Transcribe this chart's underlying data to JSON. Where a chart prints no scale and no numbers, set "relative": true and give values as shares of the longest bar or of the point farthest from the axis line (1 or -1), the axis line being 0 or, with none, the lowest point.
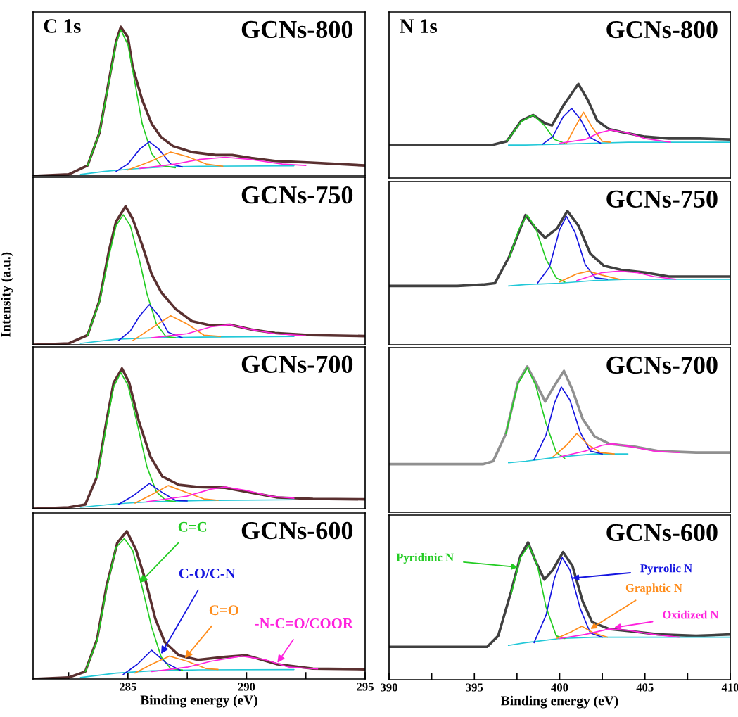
{
  "chart_data": [
    {
      "type": "line",
      "title": "GCNs-800",
      "relative": true,
      "xlim": [
        281,
        295
      ],
      "tick_labels": false,
      "annotations": [
        "C 1s"
      ],
      "series": [
        {
          "color": "#5a3030",
          "x": [
            281,
            282.5,
            283.3,
            283.8,
            284.2,
            284.5,
            284.7,
            285.0,
            285.2,
            285.6,
            286.0,
            286.4,
            286.9,
            287.7,
            288.7,
            289.4,
            290.2,
            291.2,
            292.7,
            295
          ],
          "values": [
            0,
            0.01,
            0.07,
            0.29,
            0.64,
            0.9,
            1.0,
            0.93,
            0.73,
            0.51,
            0.35,
            0.26,
            0.2,
            0.16,
            0.14,
            0.14,
            0.12,
            0.1,
            0.09,
            0.07
          ]
        },
        {
          "color": "#22c8d8",
          "x": [
            283,
            284,
            285,
            286.5,
            288,
            292
          ],
          "values": [
            0.01,
            0.03,
            0.045,
            0.06,
            0.065,
            0.068
          ]
        },
        {
          "color": "#22cc22",
          "x": [
            283.3,
            283.8,
            284.2,
            284.5,
            284.7,
            285.0,
            285.3,
            285.6,
            286.0,
            286.4,
            287
          ],
          "values": [
            0.07,
            0.29,
            0.63,
            0.89,
            0.98,
            0.88,
            0.62,
            0.35,
            0.15,
            0.07,
            0.055
          ]
        },
        {
          "color": "#1515e0",
          "x": [
            284.5,
            285.0,
            285.5,
            285.9,
            286.3,
            286.8,
            287.3
          ],
          "values": [
            0.03,
            0.08,
            0.18,
            0.23,
            0.18,
            0.08,
            0.06
          ]
        },
        {
          "color": "#ff8c1a",
          "x": [
            285.0,
            286.0,
            286.8,
            287.5,
            288.3,
            289
          ],
          "values": [
            0.04,
            0.1,
            0.16,
            0.13,
            0.08,
            0.065
          ]
        },
        {
          "color": "#ff22dd",
          "x": [
            285.5,
            287,
            288,
            289.1,
            290.2,
            291.5,
            292.5
          ],
          "values": [
            0.05,
            0.08,
            0.11,
            0.125,
            0.11,
            0.08,
            0.07
          ]
        }
      ]
    },
    {
      "type": "line",
      "title": "GCNs-800",
      "relative": true,
      "xlim": [
        390,
        410
      ],
      "tick_labels": false,
      "annotations": [
        "N 1s"
      ],
      "series": [
        {
          "color": "#404040",
          "x": [
            390,
            392,
            394,
            396,
            396.9,
            397.75,
            398.45,
            399.15,
            399.55,
            400.25,
            401.1,
            401.65,
            402.2,
            402.9,
            403.6,
            405,
            406.4,
            408.2,
            410
          ],
          "values": [
            0.35,
            0.35,
            0.35,
            0.35,
            0.39,
            0.61,
            0.67,
            0.58,
            0.56,
            0.78,
            1.0,
            0.83,
            0.61,
            0.52,
            0.49,
            0.44,
            0.42,
            0.42,
            0.41
          ]
        },
        {
          "color": "#22c8d8",
          "x": [
            397,
            398,
            400,
            402,
            404,
            410
          ],
          "values": [
            0.35,
            0.35,
            0.36,
            0.37,
            0.38,
            0.38
          ]
        },
        {
          "color": "#22cc22",
          "x": [
            396.9,
            397.75,
            398.45,
            399.1,
            399.7,
            400.3
          ],
          "values": [
            0.39,
            0.6,
            0.67,
            0.56,
            0.41,
            0.37
          ]
        },
        {
          "color": "#1515e0",
          "x": [
            399,
            399.6,
            400.2,
            400.7,
            401.2,
            401.8,
            402.4
          ],
          "values": [
            0.36,
            0.44,
            0.65,
            0.74,
            0.63,
            0.43,
            0.37
          ]
        },
        {
          "color": "#ff8c1a",
          "x": [
            400.4,
            400.9,
            401.4,
            401.9,
            402.5,
            403
          ],
          "values": [
            0.37,
            0.54,
            0.7,
            0.54,
            0.39,
            0.38
          ]
        },
        {
          "color": "#ff22dd",
          "x": [
            400,
            401.5,
            402.3,
            403,
            404,
            405,
            406.5
          ],
          "values": [
            0.37,
            0.41,
            0.48,
            0.51,
            0.48,
            0.42,
            0.38
          ]
        }
      ]
    },
    {
      "type": "line",
      "title": "GCNs-750",
      "relative": true,
      "xlim": [
        281,
        295
      ],
      "tick_labels": false,
      "ylabel": "Intensity (a.u.)",
      "series": [
        {
          "color": "#5a3030",
          "x": [
            281,
            282.5,
            283.3,
            283.8,
            284.2,
            284.5,
            284.9,
            285.2,
            285.6,
            286.0,
            286.4,
            287.0,
            287.7,
            288.5,
            289.3,
            290.2,
            291.2,
            292.7,
            295
          ],
          "values": [
            0,
            0.01,
            0.07,
            0.32,
            0.68,
            0.89,
            1.0,
            0.91,
            0.72,
            0.51,
            0.38,
            0.26,
            0.17,
            0.14,
            0.145,
            0.11,
            0.085,
            0.07,
            0.063
          ]
        },
        {
          "color": "#22c8d8",
          "x": [
            283,
            284.5,
            286,
            288,
            292
          ],
          "values": [
            0.01,
            0.04,
            0.05,
            0.055,
            0.06
          ]
        },
        {
          "color": "#22cc22",
          "x": [
            283.3,
            283.8,
            284.2,
            284.5,
            284.8,
            285.1,
            285.5,
            285.8,
            286.2,
            286.6,
            287
          ],
          "values": [
            0.07,
            0.31,
            0.64,
            0.86,
            0.94,
            0.86,
            0.6,
            0.37,
            0.15,
            0.06,
            0.05
          ]
        },
        {
          "color": "#1515e0",
          "x": [
            284.6,
            285.1,
            285.5,
            285.9,
            286.3,
            286.7,
            287.3
          ],
          "values": [
            0.03,
            0.1,
            0.21,
            0.29,
            0.21,
            0.09,
            0.05
          ]
        },
        {
          "color": "#ff8c1a",
          "x": [
            285.2,
            286,
            286.8,
            287.5,
            288.2,
            288.9
          ],
          "values": [
            0.03,
            0.12,
            0.21,
            0.15,
            0.07,
            0.06
          ]
        },
        {
          "color": "#ff22dd",
          "x": [
            286,
            287.5,
            288.5,
            289.3,
            290.2,
            291.2,
            292.5
          ],
          "values": [
            0.05,
            0.08,
            0.13,
            0.145,
            0.11,
            0.08,
            0.065
          ]
        }
      ]
    },
    {
      "type": "line",
      "title": "GCNs-750",
      "relative": true,
      "xlim": [
        390,
        410
      ],
      "tick_labels": false,
      "series": [
        {
          "color": "#404040",
          "x": [
            390,
            392,
            394,
            395.5,
            396.2,
            397.05,
            398.0,
            398.6,
            399.15,
            399.85,
            400.45,
            401.1,
            401.8,
            402.6,
            403.6,
            405,
            406.4,
            408.2,
            410
          ],
          "values": [
            0.44,
            0.44,
            0.44,
            0.45,
            0.46,
            0.66,
            0.97,
            0.87,
            0.8,
            0.87,
            1.0,
            0.89,
            0.68,
            0.59,
            0.56,
            0.54,
            0.51,
            0.51,
            0.51
          ]
        },
        {
          "color": "#22c8d8",
          "x": [
            397,
            398,
            400,
            402,
            404,
            410
          ],
          "values": [
            0.44,
            0.45,
            0.46,
            0.48,
            0.49,
            0.49
          ]
        },
        {
          "color": "#22cc22",
          "x": [
            397.05,
            397.6,
            398.1,
            398.6,
            399.2,
            399.8,
            400.3
          ],
          "values": [
            0.65,
            0.86,
            0.97,
            0.87,
            0.64,
            0.5,
            0.47
          ]
        },
        {
          "color": "#1515e0",
          "x": [
            398.7,
            399.4,
            400.0,
            400.4,
            400.9,
            401.5,
            402.1,
            402.8
          ],
          "values": [
            0.46,
            0.58,
            0.86,
            0.96,
            0.84,
            0.6,
            0.5,
            0.49
          ]
        },
        {
          "color": "#ff8c1a",
          "x": [
            400,
            401,
            401.7,
            402.5,
            403.5
          ],
          "values": [
            0.47,
            0.53,
            0.55,
            0.52,
            0.49
          ]
        },
        {
          "color": "#ff22dd",
          "x": [
            401,
            402.5,
            403.5,
            404.5,
            405.5,
            406.8
          ],
          "values": [
            0.48,
            0.54,
            0.55,
            0.54,
            0.51,
            0.49
          ]
        }
      ]
    },
    {
      "type": "line",
      "title": "GCNs-700",
      "relative": true,
      "xlim": [
        281,
        295
      ],
      "tick_labels": false,
      "series": [
        {
          "color": "#5a3030",
          "x": [
            281,
            282.5,
            283.2,
            283.7,
            284.1,
            284.4,
            284.75,
            285.05,
            285.45,
            285.95,
            286.45,
            287.15,
            287.95,
            289.1,
            290,
            291.3,
            292.8,
            295
          ],
          "values": [
            0,
            0.01,
            0.03,
            0.23,
            0.63,
            0.9,
            1.0,
            0.9,
            0.63,
            0.37,
            0.23,
            0.17,
            0.155,
            0.15,
            0.12,
            0.08,
            0.07,
            0.067
          ]
        },
        {
          "color": "#22c8d8",
          "x": [
            283,
            284.5,
            286,
            288,
            292
          ],
          "values": [
            0.01,
            0.035,
            0.05,
            0.058,
            0.064
          ]
        },
        {
          "color": "#22cc22",
          "x": [
            283.7,
            284.1,
            284.4,
            284.7,
            285.0,
            285.4,
            285.8,
            286.2,
            286.6,
            287
          ],
          "values": [
            0.22,
            0.6,
            0.87,
            0.97,
            0.88,
            0.6,
            0.3,
            0.12,
            0.06,
            0.05
          ]
        },
        {
          "color": "#1515e0",
          "x": [
            284.6,
            285.2,
            285.9,
            286.5,
            287.0,
            287.5
          ],
          "values": [
            0.03,
            0.09,
            0.18,
            0.11,
            0.06,
            0.055
          ]
        },
        {
          "color": "#ff8c1a",
          "x": [
            285.3,
            286,
            286.7,
            287.4,
            288.2,
            288.8
          ],
          "values": [
            0.04,
            0.1,
            0.165,
            0.12,
            0.07,
            0.06
          ]
        },
        {
          "color": "#ff22dd",
          "x": [
            285.8,
            287.5,
            288.5,
            289.1,
            290,
            291,
            292
          ],
          "values": [
            0.05,
            0.09,
            0.14,
            0.155,
            0.13,
            0.09,
            0.075
          ]
        }
      ]
    },
    {
      "type": "line",
      "title": "GCNs-700",
      "relative": true,
      "xlim": [
        390,
        410
      ],
      "tick_labels": false,
      "series": [
        {
          "color": "#909090",
          "x": [
            390,
            393,
            395.5,
            396.1,
            396.85,
            397.55,
            398.1,
            398.6,
            399.15,
            399.65,
            400.25,
            400.75,
            401.35,
            402.05,
            402.9,
            404.4,
            405.8,
            408,
            410
          ],
          "values": [
            0.33,
            0.33,
            0.33,
            0.35,
            0.54,
            0.89,
            1.0,
            0.89,
            0.76,
            0.86,
            0.97,
            0.84,
            0.64,
            0.52,
            0.47,
            0.45,
            0.42,
            0.41,
            0.41
          ]
        },
        {
          "color": "#22c8d8",
          "x": [
            397,
            398,
            400,
            402,
            404
          ],
          "values": [
            0.34,
            0.35,
            0.38,
            0.4,
            0.4
          ]
        },
        {
          "color": "#22cc22",
          "x": [
            396.85,
            397.55,
            398.1,
            398.6,
            399.2,
            399.8,
            400.3
          ],
          "values": [
            0.54,
            0.88,
            0.99,
            0.87,
            0.61,
            0.41,
            0.37
          ]
        },
        {
          "color": "#1515e0",
          "x": [
            398.5,
            399.2,
            399.7,
            400.1,
            400.6,
            401.2,
            401.8,
            402.5
          ],
          "values": [
            0.36,
            0.53,
            0.75,
            0.86,
            0.77,
            0.55,
            0.42,
            0.4
          ]
        },
        {
          "color": "#ff8c1a",
          "x": [
            399.6,
            400.4,
            401.0,
            401.7,
            402.4,
            403.2
          ],
          "values": [
            0.38,
            0.46,
            0.54,
            0.46,
            0.41,
            0.4
          ]
        },
        {
          "color": "#ff22dd",
          "x": [
            400,
            401.5,
            402.5,
            403.1,
            404.2,
            405.5,
            407
          ],
          "values": [
            0.38,
            0.42,
            0.46,
            0.47,
            0.45,
            0.42,
            0.41
          ]
        }
      ]
    },
    {
      "type": "line",
      "title": "GCNs-600",
      "relative": true,
      "xlim": [
        281,
        295
      ],
      "tick_labels": "x",
      "xlabel": "Binding energy (eV)",
      "xticks": [
        {
          "value": 282.5,
          "label": null
        },
        285,
        {
          "value": 287.5,
          "label": null
        },
        290,
        {
          "value": 292.5,
          "label": null
        },
        295
      ],
      "annotations": [
        {
          "text": "C=C",
          "x": 285.5,
          "y": 0.65
        },
        {
          "text": "C-O/C-N",
          "x": 286.4,
          "y": 0.17
        },
        {
          "text": "C=O",
          "x": 287.4,
          "y": 0.14
        },
        {
          "text": "-N-C=O/COOR",
          "x": 291.3,
          "y": 0.11
        }
      ],
      "series": [
        {
          "color": "#5a3030",
          "x": [
            281,
            282.5,
            283.2,
            283.7,
            284.1,
            284.55,
            284.95,
            285.35,
            285.75,
            286.15,
            286.55,
            287.15,
            287.95,
            289.1,
            290,
            291.3,
            292.8,
            295
          ],
          "values": [
            0,
            0.01,
            0.05,
            0.27,
            0.63,
            0.92,
            1.0,
            0.87,
            0.66,
            0.41,
            0.25,
            0.16,
            0.13,
            0.15,
            0.16,
            0.1,
            0.07,
            0.066
          ]
        },
        {
          "color": "#22c8d8",
          "x": [
            283,
            284.5,
            286,
            288,
            292
          ],
          "values": [
            0.01,
            0.04,
            0.055,
            0.062,
            0.064
          ]
        },
        {
          "color": "#22cc22",
          "x": [
            283.2,
            283.7,
            284.1,
            284.5,
            284.85,
            285.2,
            285.6,
            286.0,
            286.4,
            286.8,
            287.3
          ],
          "values": [
            0.05,
            0.26,
            0.61,
            0.89,
            0.95,
            0.87,
            0.62,
            0.35,
            0.15,
            0.07,
            0.06
          ]
        },
        {
          "color": "#1515e0",
          "x": [
            284.8,
            285.4,
            286.0,
            286.6,
            287.2
          ],
          "values": [
            0.03,
            0.1,
            0.195,
            0.11,
            0.06
          ]
        },
        {
          "color": "#ff8c1a",
          "x": [
            285.3,
            286,
            286.75,
            287.5,
            288.3,
            288.8
          ],
          "values": [
            0.04,
            0.1,
            0.155,
            0.12,
            0.07,
            0.065
          ]
        },
        {
          "color": "#ff22dd",
          "x": [
            286,
            287.5,
            288.5,
            289.8,
            290.8,
            291.8,
            293
          ],
          "values": [
            0.05,
            0.08,
            0.12,
            0.155,
            0.13,
            0.08,
            0.068
          ]
        }
      ]
    },
    {
      "type": "line",
      "title": "GCNs-600",
      "relative": true,
      "xlim": [
        390,
        410
      ],
      "tick_labels": "x",
      "xlabel": "Binding energy (eV)",
      "xticks": [
        390,
        {
          "value": 392.5,
          "label": null
        },
        395,
        {
          "value": 397.5,
          "label": null
        },
        400,
        {
          "value": 402.5,
          "label": null
        },
        405,
        {
          "value": 407.5,
          "label": null
        },
        410
      ],
      "annotations": [
        {
          "text": "Pyridinic N",
          "x": 397.55,
          "y": 0.82
        },
        {
          "text": "Pyrrolic N",
          "x": 400.75,
          "y": 0.74
        },
        {
          "text": "Graphtic N",
          "x": 401.8,
          "y": 0.37
        },
        {
          "text": "Oxidized N",
          "x": 403.2,
          "y": 0.38
        }
      ],
      "series": [
        {
          "color": "#404040",
          "x": [
            390,
            393,
            395.75,
            396.4,
            397.15,
            397.7,
            398.15,
            398.6,
            399.1,
            399.6,
            400.2,
            400.75,
            401.35,
            401.9,
            402.9,
            404.4,
            405.8,
            408,
            410
          ],
          "values": [
            0.24,
            0.24,
            0.24,
            0.32,
            0.64,
            0.9,
            1.0,
            0.86,
            0.73,
            0.8,
            0.93,
            0.83,
            0.57,
            0.42,
            0.37,
            0.35,
            0.33,
            0.32,
            0.33
          ]
        },
        {
          "color": "#22c8d8",
          "x": [
            397,
            398,
            400,
            402,
            404,
            410
          ],
          "values": [
            0.25,
            0.27,
            0.3,
            0.31,
            0.31,
            0.31
          ]
        },
        {
          "color": "#22cc22",
          "x": [
            397.15,
            397.7,
            398.2,
            398.7,
            399.2,
            399.8,
            400.3
          ],
          "values": [
            0.62,
            0.89,
            0.98,
            0.83,
            0.53,
            0.32,
            0.3
          ]
        },
        {
          "color": "#1515e0",
          "x": [
            398.5,
            399.2,
            399.7,
            400.15,
            400.6,
            401.2,
            401.8,
            402.5
          ],
          "values": [
            0.27,
            0.47,
            0.74,
            0.89,
            0.8,
            0.52,
            0.34,
            0.31
          ]
        },
        {
          "color": "#ff8c1a",
          "x": [
            399.8,
            400.7,
            401.3,
            402,
            402.8
          ],
          "values": [
            0.3,
            0.35,
            0.39,
            0.34,
            0.31
          ]
        },
        {
          "color": "#ff22dd",
          "x": [
            400,
            401.5,
            402.9,
            404,
            405.5,
            407
          ],
          "values": [
            0.3,
            0.33,
            0.37,
            0.36,
            0.33,
            0.31
          ]
        }
      ]
    }
  ]
}
